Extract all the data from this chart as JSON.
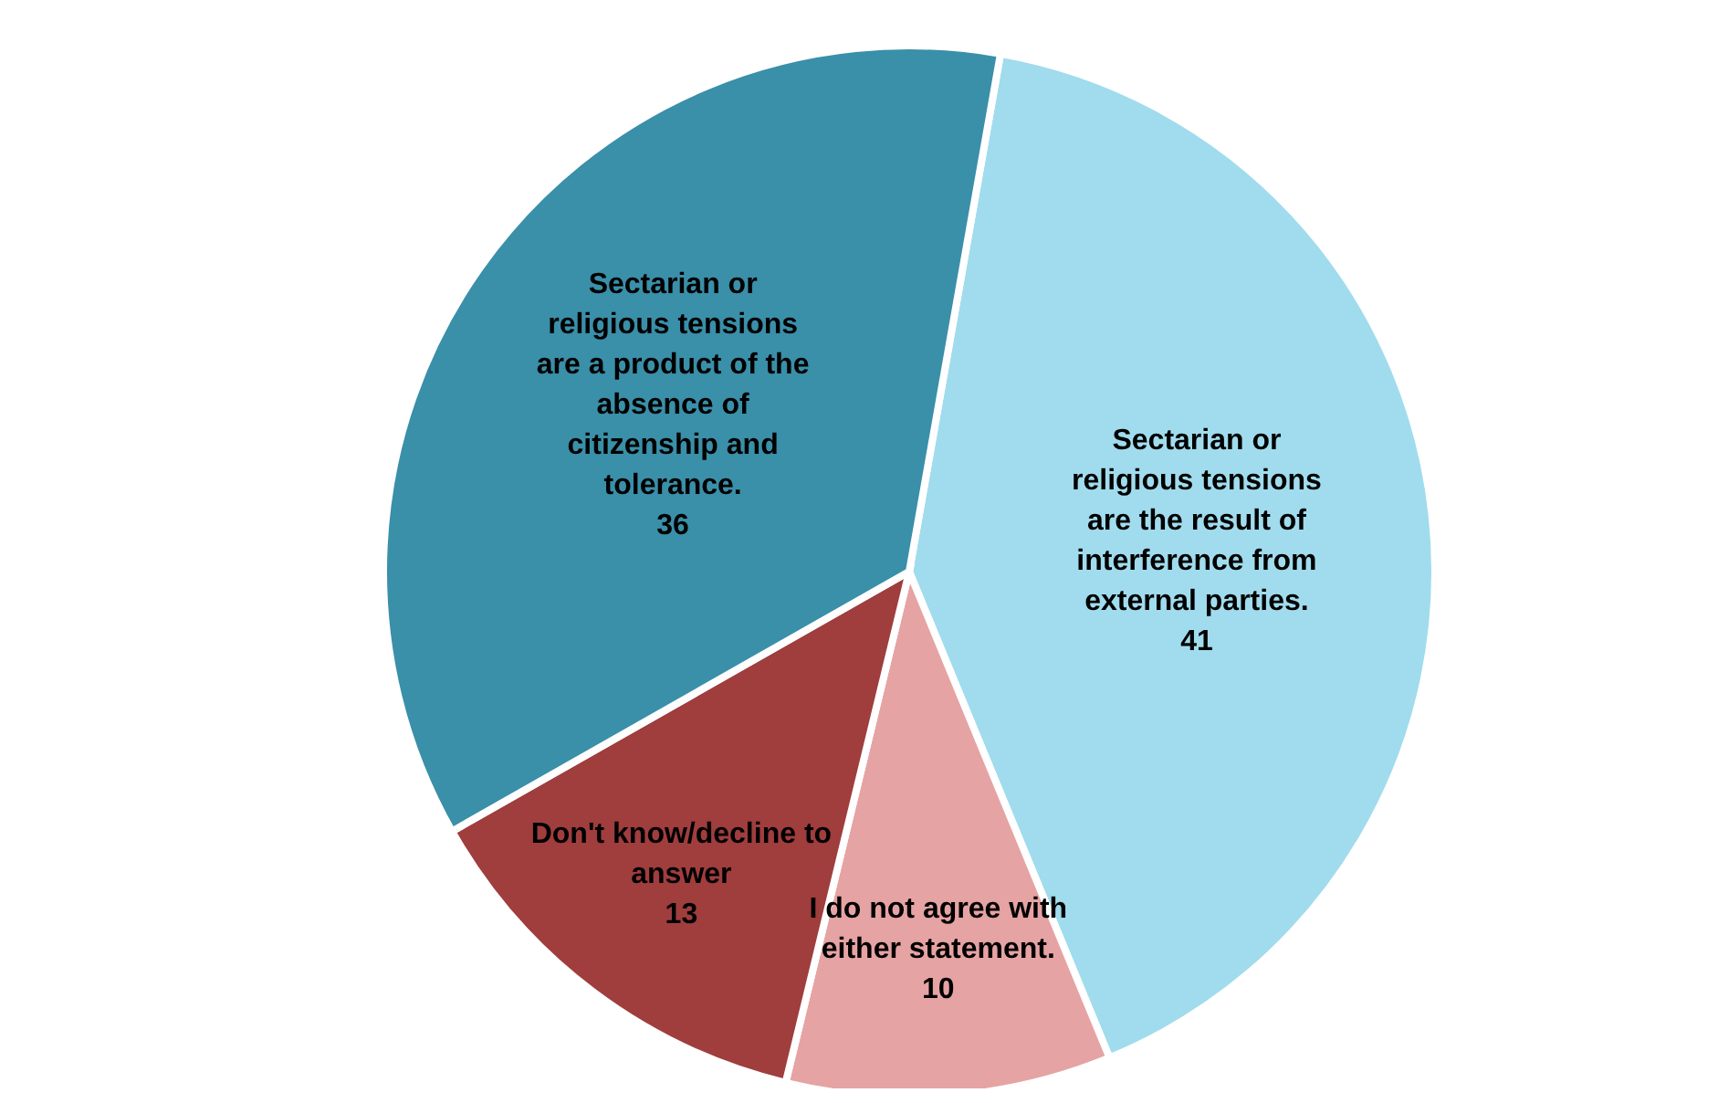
{
  "chart_data": {
    "type": "pie",
    "categories": [
      "Sectarian or religious tensions are the result of interference from external parties.",
      "I do not agree with either statement.",
      "Don't know/decline to answer",
      "Sectarian or religious tensions are a product of the absence of citizenship and tolerance."
    ],
    "values": [
      41,
      10,
      13,
      36
    ],
    "colors": [
      "#a0dced",
      "#e6a3a3",
      "#a03d3d",
      "#3a8fa9"
    ],
    "data_labels": true
  }
}
